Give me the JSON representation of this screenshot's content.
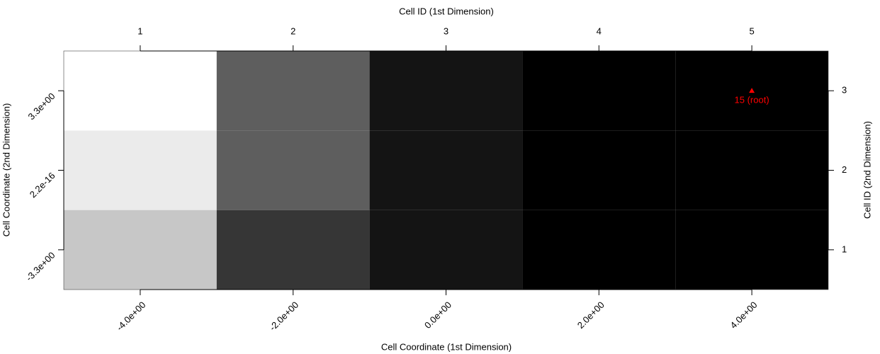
{
  "chart_data": {
    "type": "heatmap",
    "title": "Cell ID (1st Dimension)",
    "x_label": "Cell Coordinate (1st Dimension)",
    "y_label": "Cell Coordinate (2nd Dimension)",
    "y2_label": "Cell ID (2nd Dimension)",
    "x": [
      -4,
      -2,
      0,
      2,
      4
    ],
    "y": [
      -3.3,
      2.2e-16,
      3.3
    ],
    "z": [
      [
        0.78,
        0.21,
        0.08,
        0,
        0
      ],
      [
        0.92,
        0.37,
        0.08,
        0,
        0
      ],
      [
        1,
        0.37,
        0.08,
        0,
        0
      ]
    ],
    "zlim": [
      0,
      1
    ],
    "colorscale": [
      "#000000",
      "#ffffff"
    ],
    "xlim": [
      -5,
      5
    ],
    "xticks": [
      {
        "value": -4,
        "label": "-4.0e+00"
      },
      {
        "value": -2,
        "label": "-2.0e+00"
      },
      {
        "value": 0,
        "label": "0.0e+00"
      },
      {
        "value": 2,
        "label": "2.0e+00"
      },
      {
        "value": 4,
        "label": "4.0e+00"
      }
    ],
    "x2lim": [
      0.5,
      5.5
    ],
    "x2ticks": [
      1,
      2,
      3,
      4,
      5
    ],
    "ylim": [
      -4.95,
      4.95
    ],
    "yticks": [
      {
        "value": -3.3,
        "label": "-3.3e+00"
      },
      {
        "value": 2.2e-16,
        "label": "2.2e-16"
      },
      {
        "value": 3.3,
        "label": "3.3e+00"
      }
    ],
    "y2lim": [
      0.5,
      3.5
    ],
    "y2ticks": [
      1,
      2,
      3
    ],
    "points": [
      {
        "x": 4,
        "y": 3.3,
        "label": "15 (root)",
        "color": "#ff0000"
      }
    ]
  }
}
